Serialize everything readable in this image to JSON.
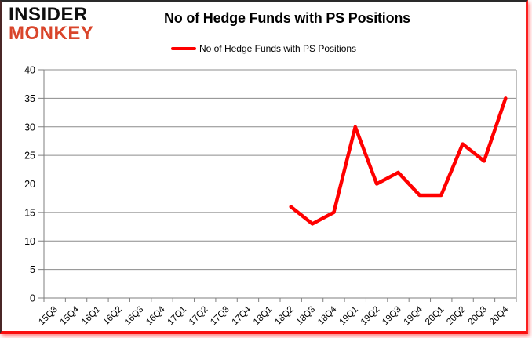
{
  "logo": {
    "line1": "INSIDER",
    "line2": "MONKEY"
  },
  "header": {
    "title": "No of Hedge Funds with PS Positions"
  },
  "legend": {
    "label": "No of Hedge Funds with PS Positions",
    "swatch_color": "#FF0000"
  },
  "chart_data": {
    "type": "line",
    "title": "No of Hedge Funds with PS Positions",
    "xlabel": "",
    "ylabel": "",
    "categories": [
      "15Q3",
      "15Q4",
      "16Q1",
      "16Q2",
      "16Q3",
      "16Q4",
      "17Q1",
      "17Q2",
      "17Q3",
      "17Q4",
      "18Q1",
      "18Q2",
      "18Q3",
      "18Q4",
      "19Q1",
      "19Q2",
      "19Q3",
      "19Q4",
      "20Q1",
      "20Q2",
      "20Q3",
      "20Q4"
    ],
    "series": [
      {
        "name": "No of Hedge Funds with PS Positions",
        "color": "#FF0000",
        "values": [
          null,
          null,
          null,
          null,
          null,
          null,
          null,
          null,
          null,
          null,
          null,
          16,
          13,
          15,
          30,
          20,
          22,
          18,
          18,
          27,
          24,
          35
        ]
      }
    ],
    "ylim": [
      0,
      40
    ],
    "ytick_step": 5,
    "grid": true,
    "gridline_color": "#8C8C8C",
    "axis_color": "#7F7F7F",
    "tick_label_color": "#000000",
    "legend_position": "top"
  }
}
